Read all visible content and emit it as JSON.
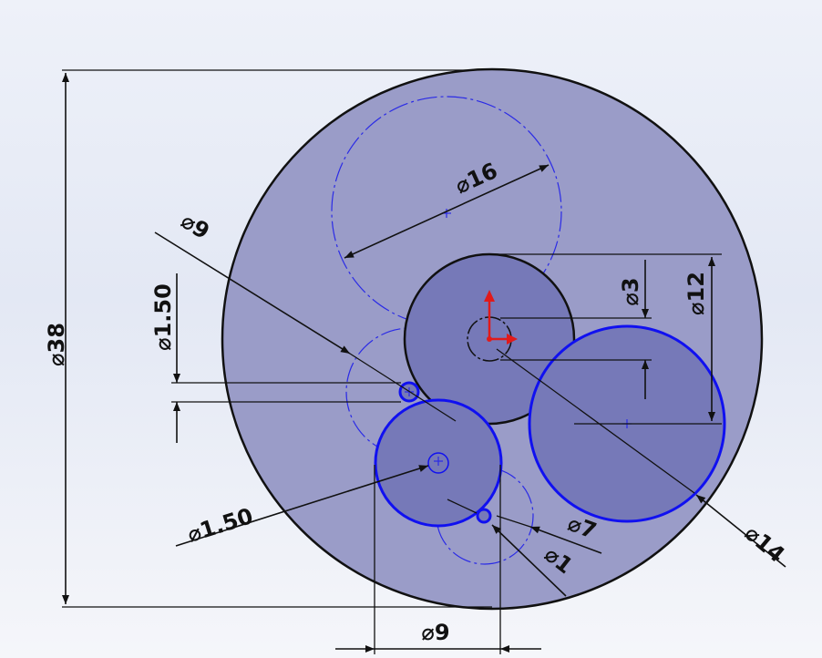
{
  "dimensions": {
    "d38": "⌀38",
    "d16": "⌀16",
    "d9_left": "⌀9",
    "d1_50_top": "⌀1.50",
    "d3": "⌀3",
    "d12": "⌀12",
    "d1_50_bottom": "⌀1.50",
    "d7": "⌀7",
    "d1": "⌀1",
    "d14": "⌀14",
    "d9_bottom": "⌀9"
  },
  "colors": {
    "outer_fill": "#9a9cc8",
    "face_fill": "#7679b8",
    "sketch_blue": "#1010f0",
    "origin_red": "#e11a1a"
  }
}
